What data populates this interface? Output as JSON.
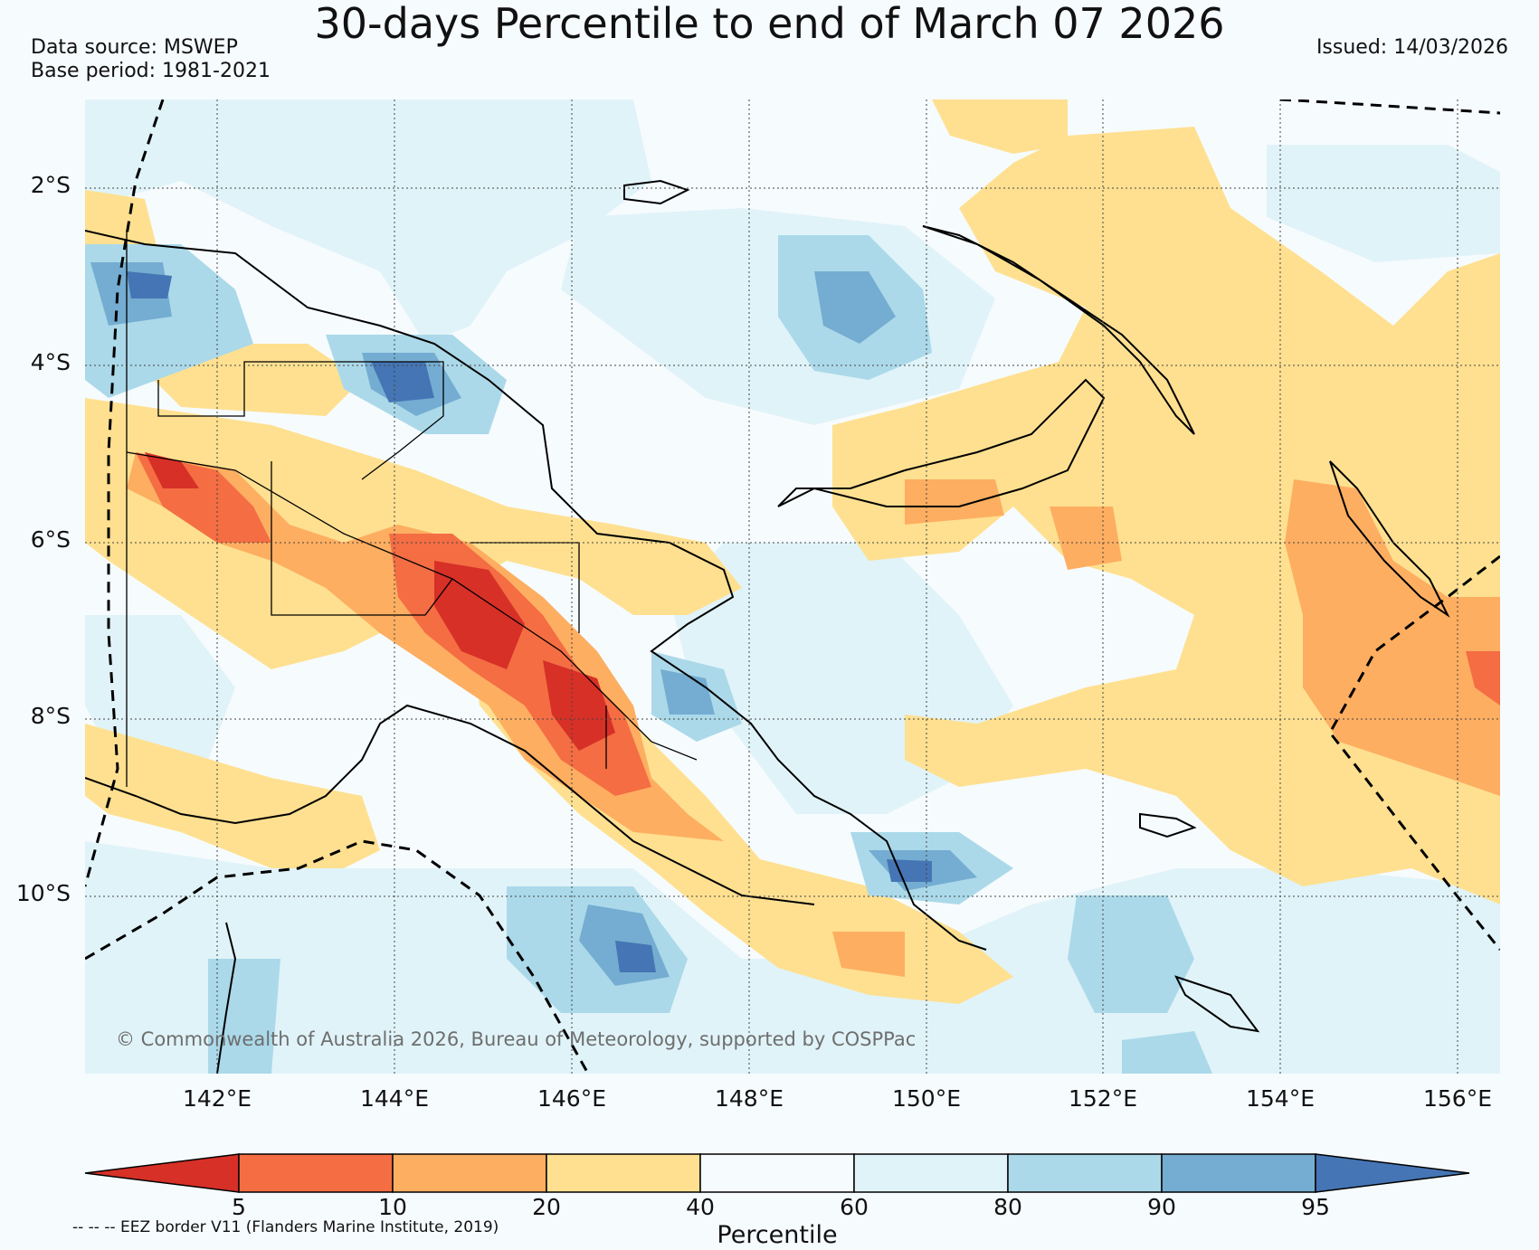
{
  "title": "30-days Percentile to end of March 07 2026",
  "data_source": "Data source: MSWEP",
  "base_period": "Base period: 1981-2021",
  "issued": "Issued: 14/03/2026",
  "credit": "© Commonwealth of Australia 2026, Bureau of Meteorology, supported by COSPPac",
  "lat_labels": [
    "2°S",
    "4°S",
    "6°S",
    "8°S",
    "10°S"
  ],
  "lon_labels": [
    "142°E",
    "144°E",
    "146°E",
    "148°E",
    "150°E",
    "152°E",
    "154°E",
    "156°E"
  ],
  "colorbar": {
    "label": "Percentile",
    "ticks": [
      "5",
      "10",
      "20",
      "40",
      "60",
      "80",
      "90",
      "95"
    ],
    "colors": [
      "#d73027",
      "#f46d43",
      "#fdae61",
      "#fee090",
      "#f6fbfe",
      "#e0f3f8",
      "#abd9e9",
      "#74add1",
      "#4575b4"
    ]
  },
  "eez_note": "-- -- -- EEZ border V11 (Flanders Marine Institute, 2019)"
}
